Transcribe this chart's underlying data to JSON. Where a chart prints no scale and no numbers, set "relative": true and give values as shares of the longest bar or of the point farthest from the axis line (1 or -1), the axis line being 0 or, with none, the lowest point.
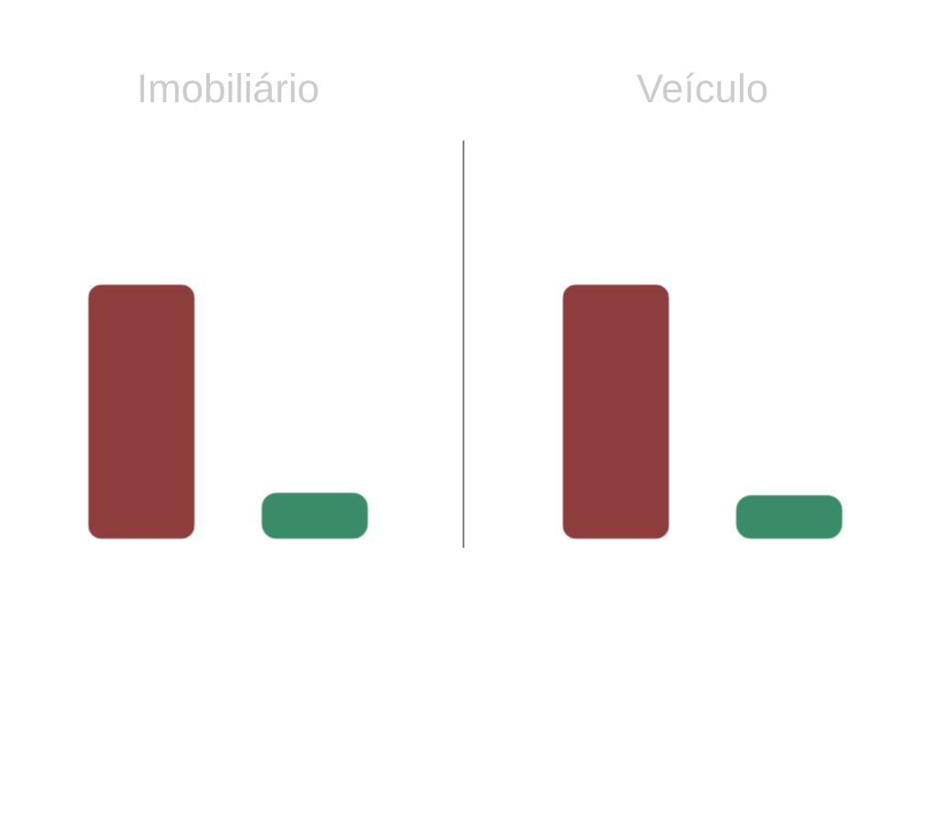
{
  "chart_data": [
    {
      "type": "bar",
      "title": "Imobiliário",
      "categories": [
        null,
        null
      ],
      "values": [
        1,
        0.18
      ],
      "colors": [
        "#8e3d3d",
        "#3a8c68"
      ],
      "relative": true
    },
    {
      "type": "bar",
      "title": "Veículo",
      "categories": [
        null,
        null
      ],
      "values": [
        1,
        0.17
      ],
      "colors": [
        "#8e3d3d",
        "#3a8c68"
      ],
      "relative": true
    }
  ]
}
